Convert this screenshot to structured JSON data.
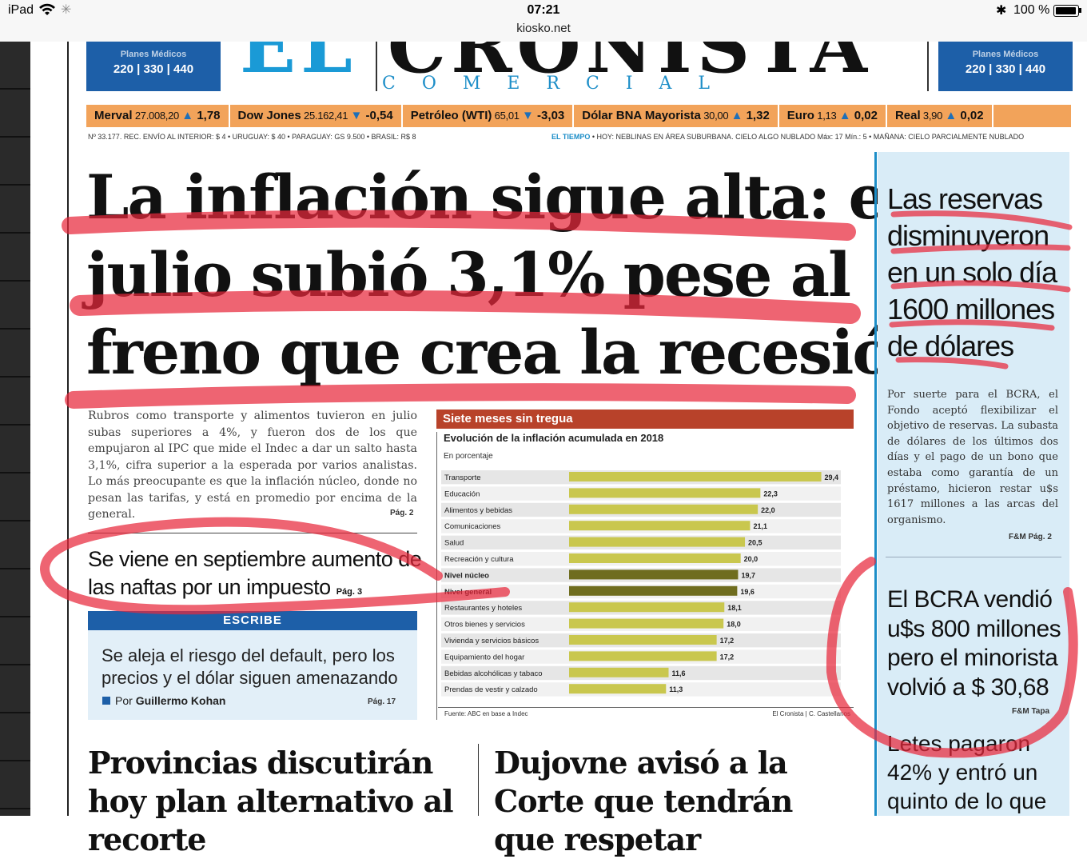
{
  "status_bar": {
    "device": "iPad",
    "time": "07:21",
    "url": "kiosko.net",
    "battery": "100 %"
  },
  "masthead": {
    "title_prefix": "EL",
    "title": "CRONISTA",
    "subtitle": "COMERCIAL",
    "promo_left": {
      "label": "Planes Médicos",
      "value": "220 | 330 | 440"
    },
    "promo_right": {
      "label": "Planes Médicos",
      "value": "220 | 330 | 440"
    }
  },
  "ticker": [
    {
      "label": "Merval",
      "value": "27.008,20",
      "direction": "up",
      "change": "1,78"
    },
    {
      "label": "Dow Jones",
      "value": "25.162,41",
      "direction": "down",
      "change": "-0,54"
    },
    {
      "label": "Petróleo (WTI)",
      "value": "65,01",
      "direction": "down",
      "change": "-3,03"
    },
    {
      "label": "Dólar BNA Mayorista",
      "value": "30,00",
      "direction": "up",
      "change": "1,32"
    },
    {
      "label": "Euro",
      "value": "1,13",
      "direction": "up",
      "change": "0,02"
    },
    {
      "label": "Real",
      "value": "3,90",
      "direction": "up",
      "change": "0,02"
    }
  ],
  "info_line": {
    "left": "Nº 33.177. REC. ENVÍO AL INTERIOR: $ 4 • URUGUAY: $ 40 • PARAGUAY: GS 9.500 • BRASIL: R$ 8",
    "weather_label": "EL TIEMPO",
    "weather": "• HOY: NEBLINAS EN ÁREA SUBURBANA. CIELO ALGO NUBLADO  Máx: 17 Mín.: 5 • MAÑANA: CIELO PARCIALMENTE NUBLADO"
  },
  "main": {
    "headline_lines": [
      "La inflación sigue alta: en",
      "julio subió 3,1% pese al",
      "freno que crea la recesión"
    ],
    "lead": "Rubros como transporte y alimentos tuvieron en julio subas superiores a 4%, y fueron dos de los que empujaron al IPC que mide el Indec a dar un salto hasta 3,1%, cifra superior a la esperada por varios analistas. Lo más preocupante es que la inflación núcleo, donde no pesan las tarifas, y está en promedio por encima de la general.",
    "lead_ref": "Pág. 2",
    "sub_headline": "Se viene en septiembre aumento de las naftas por un impuesto",
    "sub_ref": "Pág. 3",
    "escribe_label": "ESCRIBE",
    "opinion_text": "Se aleja el riesgo del default, pero los precios y el dólar siguen amenazando",
    "opinion_by_prefix": "Por",
    "opinion_author": "Guillermo Kohan",
    "opinion_ref": "Pág. 17"
  },
  "chart_title": "Siete meses sin tregua",
  "chart_subtitle": "Evolución de la inflación acumulada en 2018",
  "chart_unit": "En porcentaje",
  "chart_source": "Fuente: ABC en base a Indec",
  "chart_credit": "El Cronista | C. Castellanos",
  "chart_data": {
    "type": "bar",
    "title": "Siete meses sin tregua",
    "subtitle": "Evolución de la inflación acumulada en 2018",
    "ylabel": "En porcentaje",
    "orientation": "horizontal",
    "categories": [
      "Transporte",
      "Educación",
      "Alimentos y bebidas",
      "Comunicaciones",
      "Salud",
      "Recreación y cultura",
      "Nivel núcleo",
      "Nivel general",
      "Restaurantes y hoteles",
      "Otros bienes y servicios",
      "Vivienda y servicios básicos",
      "Equipamiento del hogar",
      "Bebidas alcohólicas y tabaco",
      "Prendas de vestir y calzado"
    ],
    "values": [
      29.4,
      22.3,
      22.0,
      21.1,
      20.5,
      20.0,
      19.7,
      19.6,
      18.1,
      18.0,
      17.2,
      17.2,
      11.6,
      11.3
    ],
    "value_labels": [
      "29,4",
      "22,3",
      "22,0",
      "21,1",
      "20,5",
      "20,0",
      "19,7",
      "19,6",
      "18,1",
      "18,0",
      "17,2",
      "17,2",
      "11,6",
      "11,3"
    ],
    "highlight": [
      "Nivel núcleo",
      "Nivel general"
    ],
    "xlim": [
      0,
      30
    ],
    "colors": {
      "bar": "#c9c74e",
      "highlight": "#6f6d1f"
    }
  },
  "right_column": {
    "headline": "Las reservas disminuyeron en un solo día 1600 millones de dólares",
    "body": "Por suerte para el BCRA, el Fondo aceptó flexibilizar el objetivo de reservas. La subasta de dólares de los últimos dos días y el pago de un bono que estaba como garantía de un préstamo, hicieron restar u$s 1617 millones a las arcas del organismo.",
    "ref": "F&M Pág. 2",
    "headline2": "El BCRA vendió u$s 800 millones pero el minorista volvió a $ 30,68",
    "ref2": "F&M Tapa",
    "headline3": "Letes pagaron 42% y entró un quinto de lo que"
  },
  "bottom": {
    "left_headline": "Provincias discutirán hoy plan alternativo al recorte",
    "mid_headline": "Dujovne avisó a la Corte que tendrán que respetar"
  },
  "colors": {
    "accent_blue": "#1d5fa8",
    "ticker_orange": "#f2a35a",
    "chart_red": "#b8422a",
    "highlight_red": "#e8283c"
  }
}
